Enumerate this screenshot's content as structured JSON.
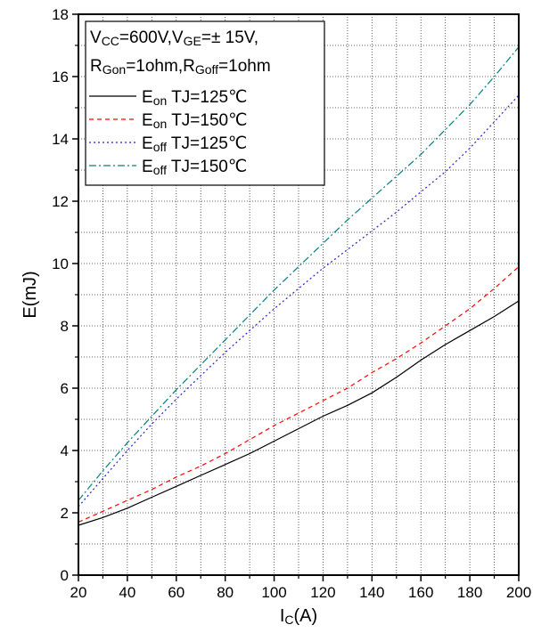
{
  "chart_data": {
    "type": "line",
    "xlabel": {
      "main": "I",
      "sub": "C",
      "tail": "(A)"
    },
    "ylabel": "E(mJ)",
    "xlim": [
      20,
      200
    ],
    "ylim": [
      0,
      18
    ],
    "x_ticks": [
      20,
      40,
      60,
      80,
      100,
      120,
      140,
      160,
      180,
      200
    ],
    "y_ticks": [
      0,
      2,
      4,
      6,
      8,
      10,
      12,
      14,
      16,
      18
    ],
    "grid": true,
    "legend_position": "top-left",
    "conditions": [
      [
        {
          "t": "V",
          "s": false
        },
        {
          "t": "CC",
          "s": true
        },
        {
          "t": "=600V,V",
          "s": false
        },
        {
          "t": "GE",
          "s": true
        },
        {
          "t": "=± 15V,",
          "s": false
        }
      ],
      [
        {
          "t": "R",
          "s": false
        },
        {
          "t": "Gon",
          "s": true
        },
        {
          "t": "=1ohm,R",
          "s": false
        },
        {
          "t": "Goff",
          "s": true
        },
        {
          "t": "=1ohm",
          "s": false
        }
      ]
    ],
    "series": [
      {
        "name": "Eon TJ=125℃",
        "label_main": "E",
        "label_sub": "on",
        "label_tail": " TJ=125℃",
        "color": "#000000",
        "dash": "none",
        "x": [
          20,
          30,
          40,
          50,
          60,
          70,
          80,
          90,
          100,
          110,
          120,
          130,
          140,
          150,
          160,
          170,
          180,
          190,
          200
        ],
        "y": [
          1.6,
          1.85,
          2.15,
          2.5,
          2.85,
          3.2,
          3.55,
          3.9,
          4.3,
          4.7,
          5.1,
          5.45,
          5.85,
          6.35,
          6.9,
          7.4,
          7.85,
          8.3,
          8.8
        ]
      },
      {
        "name": "Eon TJ=150℃",
        "label_main": "E",
        "label_sub": "on",
        "label_tail": " TJ=150℃",
        "color": "#ff0000",
        "dash": "5,4",
        "x": [
          20,
          30,
          40,
          50,
          60,
          70,
          80,
          90,
          100,
          110,
          120,
          130,
          140,
          150,
          160,
          170,
          180,
          190,
          200
        ],
        "y": [
          1.7,
          2.05,
          2.4,
          2.75,
          3.15,
          3.5,
          3.9,
          4.35,
          4.8,
          5.2,
          5.6,
          6.0,
          6.5,
          6.95,
          7.45,
          8.0,
          8.55,
          9.2,
          9.9
        ]
      },
      {
        "name": "Eoff TJ=125℃",
        "label_main": "E",
        "label_sub": "off",
        "label_tail": " TJ=125℃",
        "color": "#2020d0",
        "dash": "2,3",
        "x": [
          20,
          30,
          40,
          50,
          60,
          70,
          80,
          90,
          100,
          110,
          120,
          130,
          140,
          150,
          160,
          170,
          180,
          190,
          200
        ],
        "y": [
          2.2,
          3.1,
          4.0,
          4.85,
          5.65,
          6.4,
          7.15,
          7.85,
          8.55,
          9.2,
          9.85,
          10.45,
          11.05,
          11.65,
          12.3,
          12.95,
          13.7,
          14.55,
          15.4
        ]
      },
      {
        "name": "Eoff TJ=150℃",
        "label_main": "E",
        "label_sub": "off",
        "label_tail": " TJ=150℃",
        "color": "#008080",
        "dash": "8,3,2,3",
        "x": [
          20,
          30,
          40,
          50,
          60,
          70,
          80,
          90,
          100,
          110,
          120,
          130,
          140,
          150,
          160,
          170,
          180,
          190,
          200
        ],
        "y": [
          2.4,
          3.35,
          4.25,
          5.1,
          5.95,
          6.75,
          7.55,
          8.35,
          9.15,
          9.9,
          10.65,
          11.4,
          12.1,
          12.8,
          13.5,
          14.3,
          15.1,
          16.0,
          16.95
        ]
      }
    ]
  }
}
